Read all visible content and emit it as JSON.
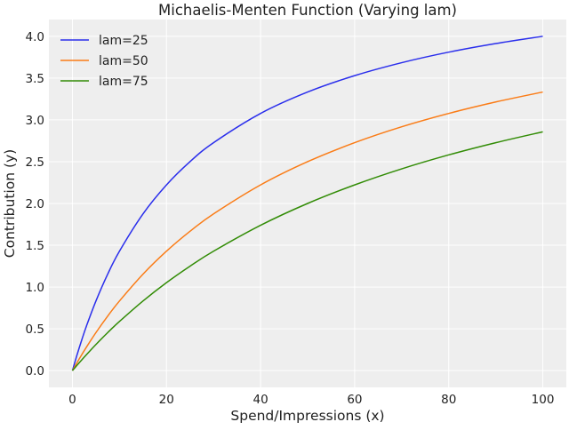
{
  "chart_data": {
    "type": "line",
    "title": "Michaelis-Menten Function (Varying lam)",
    "xlabel": "Spend/Impressions (x)",
    "ylabel": "Contribution (y)",
    "xlim": [
      -5,
      105
    ],
    "ylim": [
      -0.2,
      4.2
    ],
    "xticks": [
      0,
      20,
      40,
      60,
      80,
      100
    ],
    "xtick_labels": [
      "0",
      "20",
      "40",
      "60",
      "80",
      "100"
    ],
    "yticks": [
      0,
      0.5,
      1,
      1.5,
      2,
      2.5,
      3,
      3.5,
      4
    ],
    "ytick_labels": [
      "0.0",
      "0.5",
      "1.0",
      "1.5",
      "2.0",
      "2.5",
      "3.0",
      "3.5",
      "4.0"
    ],
    "grid": true,
    "legend_position": "top-left",
    "background": "#eeeeee",
    "x": [
      0,
      1,
      2,
      3,
      5,
      7.5,
      10,
      15,
      20,
      25,
      30,
      40,
      50,
      60,
      70,
      80,
      90,
      100
    ],
    "series": [
      {
        "name": "lam=25",
        "color": "#2a2eec",
        "values": [
          0,
          0.192,
          0.37,
          0.536,
          0.833,
          1.154,
          1.429,
          1.875,
          2.222,
          2.5,
          2.727,
          3.077,
          3.333,
          3.529,
          3.684,
          3.81,
          3.913,
          4.0
        ]
      },
      {
        "name": "lam=50",
        "color": "#fa7c17",
        "values": [
          0,
          0.098,
          0.192,
          0.283,
          0.455,
          0.652,
          0.833,
          1.154,
          1.429,
          1.667,
          1.875,
          2.222,
          2.5,
          2.727,
          2.917,
          3.077,
          3.214,
          3.333
        ]
      },
      {
        "name": "lam=75",
        "color": "#328c06",
        "values": [
          0,
          0.066,
          0.13,
          0.192,
          0.313,
          0.455,
          0.588,
          0.833,
          1.053,
          1.25,
          1.429,
          1.739,
          2.0,
          2.222,
          2.414,
          2.581,
          2.727,
          2.857
        ]
      }
    ]
  }
}
